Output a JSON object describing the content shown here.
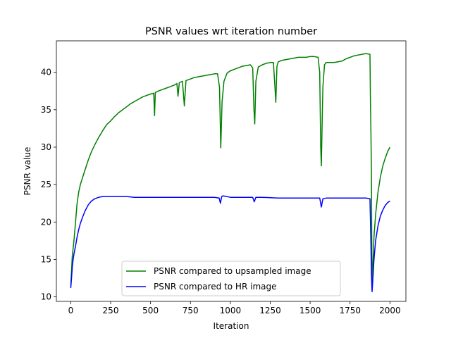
{
  "chart_data": {
    "type": "line",
    "title": "PSNR values wrt iteration number",
    "xlabel": "Iteration",
    "ylabel": "PSNR value",
    "xlim": [
      -90,
      2100
    ],
    "ylim": [
      9.4,
      44.2
    ],
    "xticks": [
      0,
      250,
      500,
      750,
      1000,
      1250,
      1500,
      1750,
      2000
    ],
    "yticks": [
      10,
      15,
      20,
      25,
      30,
      35,
      40
    ],
    "grid": false,
    "legend": "lower-center",
    "series": [
      {
        "name": "PSNR compared to upsampled image",
        "color": "#008000",
        "points": [
          [
            0,
            11.5
          ],
          [
            5,
            13.5
          ],
          [
            10,
            15.5
          ],
          [
            15,
            16.5
          ],
          [
            20,
            17.5
          ],
          [
            30,
            20.0
          ],
          [
            40,
            22.5
          ],
          [
            50,
            24.0
          ],
          [
            60,
            25.0
          ],
          [
            75,
            26.0
          ],
          [
            90,
            27.0
          ],
          [
            110,
            28.3
          ],
          [
            130,
            29.4
          ],
          [
            150,
            30.3
          ],
          [
            175,
            31.3
          ],
          [
            200,
            32.2
          ],
          [
            225,
            33.0
          ],
          [
            250,
            33.5
          ],
          [
            275,
            34.1
          ],
          [
            300,
            34.6
          ],
          [
            325,
            35.0
          ],
          [
            350,
            35.4
          ],
          [
            375,
            35.8
          ],
          [
            400,
            36.1
          ],
          [
            425,
            36.4
          ],
          [
            450,
            36.7
          ],
          [
            475,
            36.9
          ],
          [
            500,
            37.1
          ],
          [
            520,
            37.2
          ],
          [
            525,
            34.2
          ],
          [
            530,
            37.3
          ],
          [
            550,
            37.5
          ],
          [
            575,
            37.7
          ],
          [
            600,
            37.9
          ],
          [
            625,
            38.1
          ],
          [
            650,
            38.3
          ],
          [
            665,
            38.5
          ],
          [
            672,
            36.8
          ],
          [
            680,
            38.6
          ],
          [
            700,
            38.8
          ],
          [
            712,
            35.5
          ],
          [
            722,
            38.9
          ],
          [
            750,
            39.1
          ],
          [
            775,
            39.3
          ],
          [
            800,
            39.4
          ],
          [
            825,
            39.5
          ],
          [
            850,
            39.6
          ],
          [
            880,
            39.7
          ],
          [
            900,
            39.8
          ],
          [
            920,
            39.8
          ],
          [
            932,
            38.0
          ],
          [
            940,
            29.9
          ],
          [
            948,
            36.0
          ],
          [
            960,
            38.8
          ],
          [
            980,
            39.9
          ],
          [
            1000,
            40.2
          ],
          [
            1025,
            40.4
          ],
          [
            1050,
            40.6
          ],
          [
            1075,
            40.8
          ],
          [
            1100,
            40.9
          ],
          [
            1125,
            41.0
          ],
          [
            1140,
            40.6
          ],
          [
            1148,
            35.0
          ],
          [
            1153,
            33.1
          ],
          [
            1160,
            38.8
          ],
          [
            1175,
            40.7
          ],
          [
            1200,
            41.0
          ],
          [
            1225,
            41.2
          ],
          [
            1250,
            41.3
          ],
          [
            1270,
            41.3
          ],
          [
            1280,
            37.8
          ],
          [
            1285,
            36.0
          ],
          [
            1292,
            40.8
          ],
          [
            1300,
            41.4
          ],
          [
            1325,
            41.6
          ],
          [
            1350,
            41.7
          ],
          [
            1375,
            41.8
          ],
          [
            1400,
            41.9
          ],
          [
            1425,
            42.0
          ],
          [
            1450,
            42.0
          ],
          [
            1475,
            42.0
          ],
          [
            1500,
            42.1
          ],
          [
            1525,
            42.1
          ],
          [
            1550,
            42.0
          ],
          [
            1560,
            40.0
          ],
          [
            1566,
            30.0
          ],
          [
            1570,
            27.5
          ],
          [
            1575,
            33.0
          ],
          [
            1580,
            38.0
          ],
          [
            1590,
            41.0
          ],
          [
            1600,
            41.3
          ],
          [
            1625,
            41.3
          ],
          [
            1650,
            41.3
          ],
          [
            1675,
            41.4
          ],
          [
            1700,
            41.5
          ],
          [
            1725,
            41.8
          ],
          [
            1750,
            42.0
          ],
          [
            1775,
            42.2
          ],
          [
            1800,
            42.3
          ],
          [
            1825,
            42.4
          ],
          [
            1850,
            42.5
          ],
          [
            1875,
            42.4
          ],
          [
            1878,
            36.0
          ],
          [
            1881,
            32.0
          ],
          [
            1884,
            26.0
          ],
          [
            1886,
            18.0
          ],
          [
            1888,
            11.0
          ],
          [
            1892,
            13.5
          ],
          [
            1900,
            18.0
          ],
          [
            1910,
            21.0
          ],
          [
            1925,
            24.0
          ],
          [
            1940,
            26.0
          ],
          [
            1955,
            27.5
          ],
          [
            1970,
            28.5
          ],
          [
            1985,
            29.4
          ],
          [
            2000,
            30.0
          ]
        ]
      },
      {
        "name": "PSNR compared to HR image",
        "color": "#0000ff",
        "points": [
          [
            0,
            11.2
          ],
          [
            5,
            12.5
          ],
          [
            10,
            14.0
          ],
          [
            15,
            15.0
          ],
          [
            20,
            15.7
          ],
          [
            30,
            16.8
          ],
          [
            40,
            18.0
          ],
          [
            50,
            19.0
          ],
          [
            60,
            19.8
          ],
          [
            75,
            20.7
          ],
          [
            90,
            21.5
          ],
          [
            110,
            22.3
          ],
          [
            130,
            22.8
          ],
          [
            150,
            23.1
          ],
          [
            175,
            23.3
          ],
          [
            200,
            23.4
          ],
          [
            250,
            23.4
          ],
          [
            300,
            23.4
          ],
          [
            350,
            23.4
          ],
          [
            400,
            23.3
          ],
          [
            500,
            23.3
          ],
          [
            600,
            23.3
          ],
          [
            700,
            23.3
          ],
          [
            800,
            23.3
          ],
          [
            900,
            23.3
          ],
          [
            930,
            23.2
          ],
          [
            938,
            22.5
          ],
          [
            946,
            23.4
          ],
          [
            955,
            23.5
          ],
          [
            1000,
            23.3
          ],
          [
            1100,
            23.3
          ],
          [
            1140,
            23.3
          ],
          [
            1150,
            22.7
          ],
          [
            1160,
            23.3
          ],
          [
            1200,
            23.3
          ],
          [
            1300,
            23.2
          ],
          [
            1400,
            23.2
          ],
          [
            1500,
            23.2
          ],
          [
            1560,
            23.2
          ],
          [
            1570,
            22.0
          ],
          [
            1580,
            23.1
          ],
          [
            1600,
            23.2
          ],
          [
            1700,
            23.2
          ],
          [
            1800,
            23.2
          ],
          [
            1850,
            23.2
          ],
          [
            1875,
            23.1
          ],
          [
            1880,
            18.0
          ],
          [
            1884,
            13.0
          ],
          [
            1888,
            10.7
          ],
          [
            1892,
            12.0
          ],
          [
            1900,
            15.0
          ],
          [
            1910,
            17.5
          ],
          [
            1925,
            19.5
          ],
          [
            1940,
            20.8
          ],
          [
            1955,
            21.6
          ],
          [
            1970,
            22.2
          ],
          [
            1985,
            22.6
          ],
          [
            2000,
            22.8
          ]
        ]
      }
    ]
  }
}
